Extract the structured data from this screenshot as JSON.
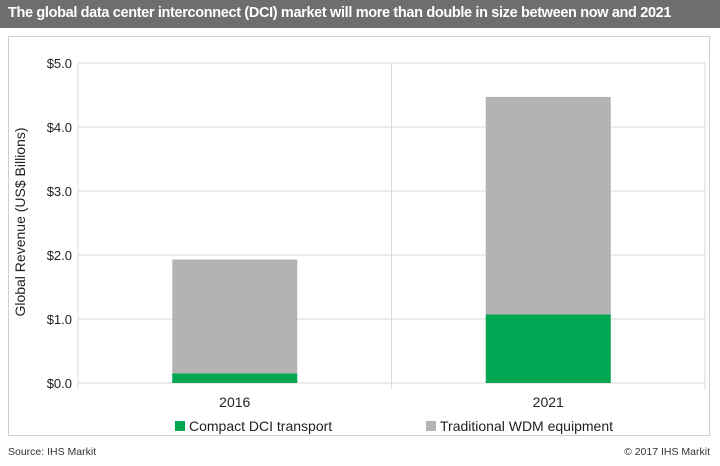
{
  "header": {
    "title": "The global data center interconnect (DCI) market will more than double in size between now and 2021"
  },
  "footer": {
    "source": "Source: IHS Markit",
    "copyright": "© 2017 IHS Markit"
  },
  "colors": {
    "title_bar": "#6e6e6e",
    "compact": "#00a651",
    "traditional": "#b3b3b3",
    "gridline": "#d9d9d9"
  },
  "chart_data": {
    "type": "bar",
    "stacked": true,
    "categories": [
      "2016",
      "2021"
    ],
    "series": [
      {
        "name": "Compact DCI transport",
        "values": [
          0.15,
          1.07
        ]
      },
      {
        "name": "Traditional WDM equipment",
        "values": [
          1.78,
          3.4
        ]
      }
    ],
    "ylabel": "Global Revenue (US$ Billions)",
    "ylim": [
      0,
      5.0
    ],
    "yticks": [
      0,
      1.0,
      2.0,
      3.0,
      4.0,
      5.0
    ],
    "ytick_labels": [
      "$0.0",
      "$1.0",
      "$2.0",
      "$3.0",
      "$4.0",
      "$5.0"
    ],
    "grid": true,
    "legend_position": "bottom"
  }
}
